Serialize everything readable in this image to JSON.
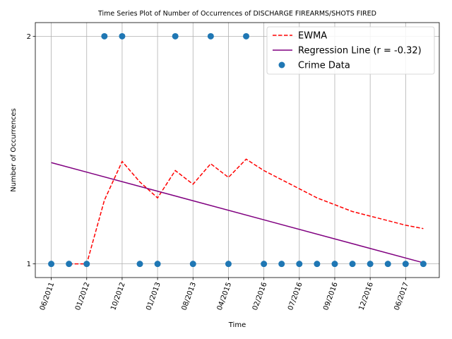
{
  "chart_data": {
    "type": "line",
    "title": "Time Series Plot of Number of Occurrences of DISCHARGE FIREARMS/SHOTS FIRED",
    "xlabel": "Time",
    "ylabel": "Number of Occurrences",
    "ylim": [
      0.94,
      2.06
    ],
    "y_ticks": [
      1,
      2
    ],
    "x_ticks": [
      "06/2011",
      "01/2012",
      "10/2012",
      "01/2013",
      "08/2013",
      "04/2015",
      "02/2016",
      "07/2016",
      "09/2016",
      "12/2016",
      "06/2017"
    ],
    "x_tick_positions": [
      0,
      2,
      4,
      6,
      8,
      10,
      12,
      14,
      16,
      18,
      20
    ],
    "x_range": [
      -0.9,
      21.9
    ],
    "grid": true,
    "legend_position": "top-right",
    "series": [
      {
        "name": "EWMA",
        "style": "dashed",
        "color": "#ff0000",
        "x": [
          1,
          2,
          3,
          4,
          5,
          6,
          7,
          8,
          9,
          10,
          11,
          12,
          13,
          14,
          15,
          16,
          17,
          18,
          19,
          20,
          21
        ],
        "y": [
          1.0,
          1.0,
          1.28,
          1.45,
          1.36,
          1.29,
          1.41,
          1.35,
          1.44,
          1.38,
          1.46,
          1.41,
          1.37,
          1.33,
          1.29,
          1.26,
          1.23,
          1.21,
          1.19,
          1.17,
          1.155
        ]
      },
      {
        "name": "Regression Line (r = -0.32)",
        "style": "solid",
        "color": "#800080",
        "x": [
          0,
          21
        ],
        "y": [
          1.445,
          1.005
        ]
      },
      {
        "name": "Crime Data",
        "style": "scatter",
        "color": "#1f77b4",
        "x": [
          0,
          1,
          2,
          3,
          4,
          5,
          6,
          7,
          8,
          9,
          10,
          11,
          12,
          13,
          14,
          15,
          16,
          17,
          18,
          19,
          20,
          21
        ],
        "y": [
          1,
          1,
          1,
          2,
          2,
          1,
          1,
          2,
          1,
          2,
          1,
          2,
          1,
          1,
          1,
          1,
          1,
          1,
          1,
          1,
          1,
          1
        ]
      }
    ]
  }
}
